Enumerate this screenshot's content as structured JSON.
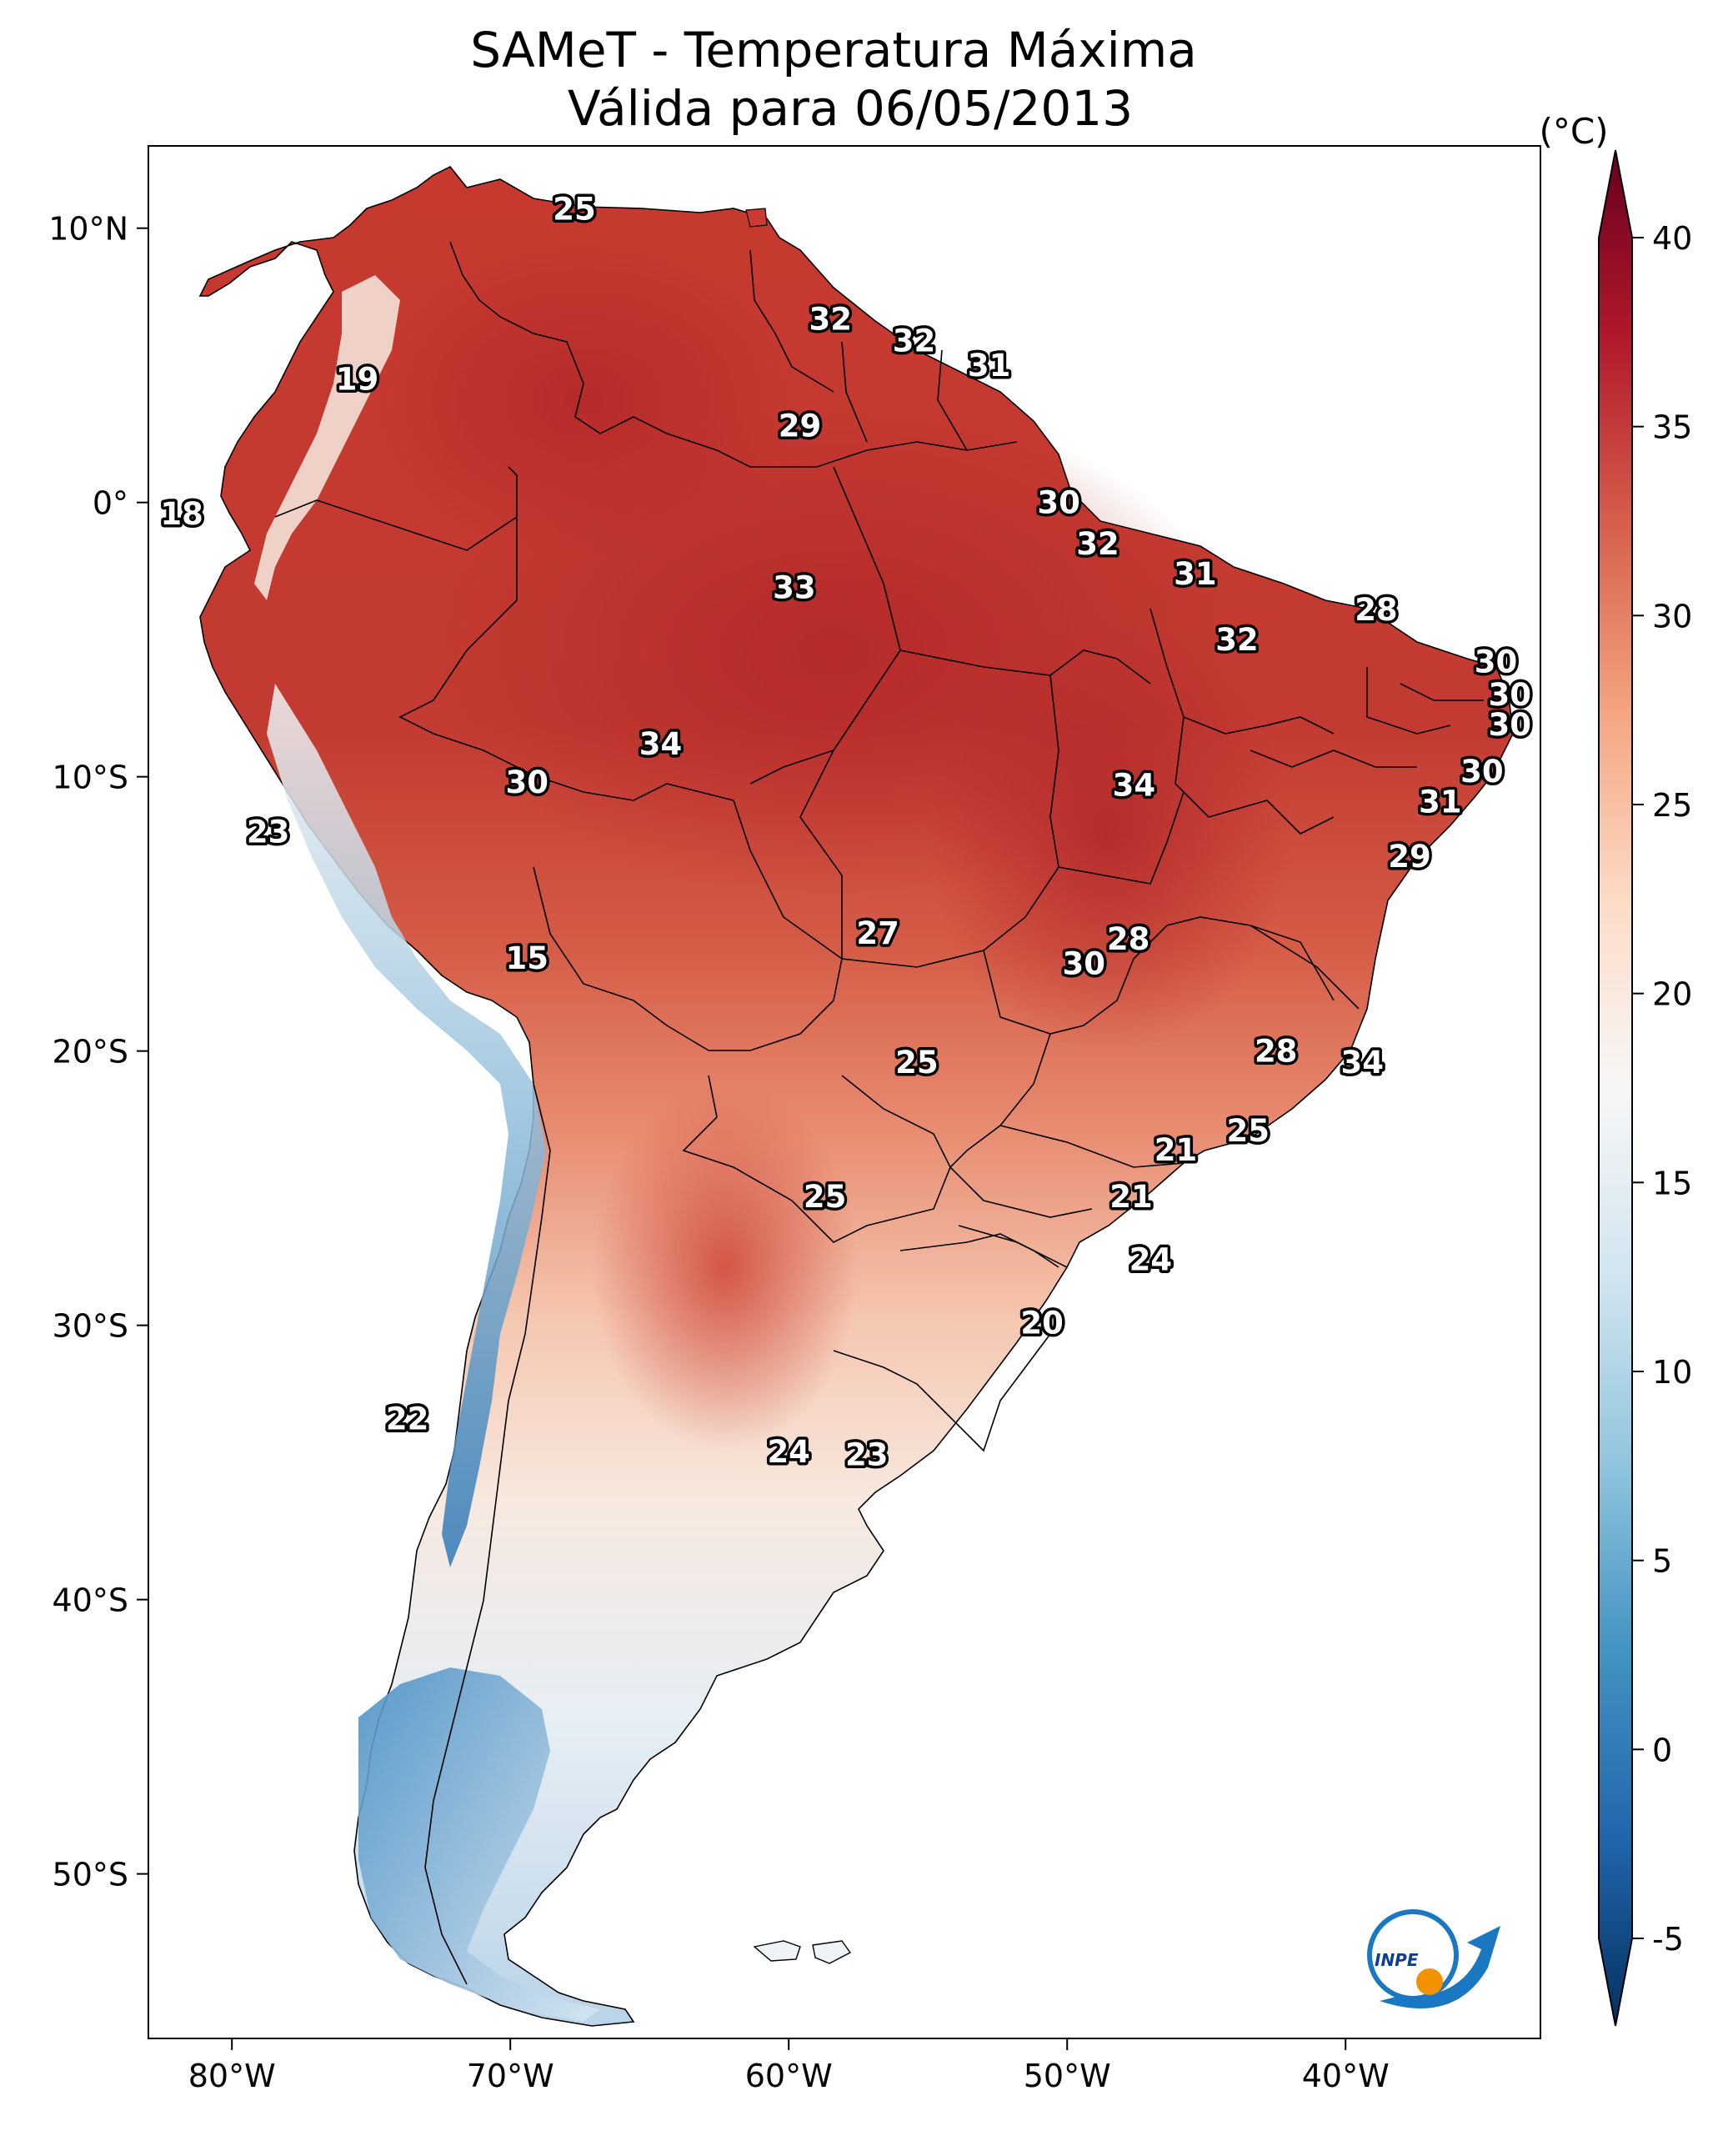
{
  "title": {
    "line1": "SAMeT - Temperatura Máxima",
    "line2": "Válida para 06/05/2013"
  },
  "map": {
    "lon_range": [
      -83,
      -33
    ],
    "lat_range": [
      -56,
      13
    ],
    "x_ticks": [
      {
        "lon": -80,
        "label": "80°W"
      },
      {
        "lon": -70,
        "label": "70°W"
      },
      {
        "lon": -60,
        "label": "60°W"
      },
      {
        "lon": -50,
        "label": "50°W"
      },
      {
        "lon": -40,
        "label": "40°W"
      }
    ],
    "y_ticks": [
      {
        "lat": 10,
        "label": "10°N"
      },
      {
        "lat": 0,
        "label": "0°"
      },
      {
        "lat": -10,
        "label": "10°S"
      },
      {
        "lat": -20,
        "label": "20°S"
      },
      {
        "lat": -30,
        "label": "30°S"
      },
      {
        "lat": -40,
        "label": "40°S"
      },
      {
        "lat": -50,
        "label": "50°S"
      }
    ],
    "temperature_labels": [
      {
        "lon": -67.7,
        "lat": 10.7,
        "text": "25"
      },
      {
        "lon": -58.5,
        "lat": 6.7,
        "text": "32"
      },
      {
        "lon": -55.5,
        "lat": 5.9,
        "text": "32"
      },
      {
        "lon": -52.8,
        "lat": 5.0,
        "text": "31"
      },
      {
        "lon": -75.5,
        "lat": 4.5,
        "text": "19"
      },
      {
        "lon": -59.6,
        "lat": 2.8,
        "text": "29"
      },
      {
        "lon": -50.3,
        "lat": 0.0,
        "text": "30"
      },
      {
        "lon": -81.8,
        "lat": -0.4,
        "text": "18"
      },
      {
        "lon": -48.9,
        "lat": -1.5,
        "text": "32"
      },
      {
        "lon": -45.4,
        "lat": -2.6,
        "text": "31"
      },
      {
        "lon": -59.8,
        "lat": -3.1,
        "text": "33"
      },
      {
        "lon": -38.9,
        "lat": -3.9,
        "text": "28"
      },
      {
        "lon": -43.9,
        "lat": -5.0,
        "text": "32"
      },
      {
        "lon": -34.6,
        "lat": -5.8,
        "text": "30"
      },
      {
        "lon": -34.1,
        "lat": -7.0,
        "text": "30"
      },
      {
        "lon": -34.1,
        "lat": -8.1,
        "text": "30"
      },
      {
        "lon": -64.6,
        "lat": -8.8,
        "text": "34"
      },
      {
        "lon": -35.1,
        "lat": -9.8,
        "text": "30"
      },
      {
        "lon": -69.4,
        "lat": -10.2,
        "text": "30"
      },
      {
        "lon": -47.6,
        "lat": -10.3,
        "text": "34"
      },
      {
        "lon": -36.6,
        "lat": -10.9,
        "text": "31"
      },
      {
        "lon": -78.7,
        "lat": -12.0,
        "text": "23"
      },
      {
        "lon": -37.7,
        "lat": -12.9,
        "text": "29"
      },
      {
        "lon": -56.8,
        "lat": -15.7,
        "text": "27"
      },
      {
        "lon": -47.8,
        "lat": -15.9,
        "text": "28"
      },
      {
        "lon": -69.4,
        "lat": -16.6,
        "text": "15"
      },
      {
        "lon": -49.4,
        "lat": -16.8,
        "text": "30"
      },
      {
        "lon": -42.5,
        "lat": -20.0,
        "text": "28"
      },
      {
        "lon": -55.4,
        "lat": -20.4,
        "text": "25"
      },
      {
        "lon": -39.4,
        "lat": -20.4,
        "text": "34"
      },
      {
        "lon": -43.5,
        "lat": -22.9,
        "text": "25"
      },
      {
        "lon": -46.1,
        "lat": -23.6,
        "text": "21"
      },
      {
        "lon": -58.7,
        "lat": -25.3,
        "text": "25"
      },
      {
        "lon": -47.7,
        "lat": -25.3,
        "text": "21"
      },
      {
        "lon": -47.0,
        "lat": -27.6,
        "text": "24"
      },
      {
        "lon": -50.9,
        "lat": -29.9,
        "text": "20"
      },
      {
        "lon": -73.7,
        "lat": -33.4,
        "text": "22"
      },
      {
        "lon": -60.0,
        "lat": -34.6,
        "text": "24"
      },
      {
        "lon": -57.2,
        "lat": -34.7,
        "text": "23"
      }
    ]
  },
  "colorbar": {
    "unit": "(°C)",
    "min": -5,
    "max": 40,
    "ticks": [
      "-5",
      "0",
      "5",
      "10",
      "15",
      "20",
      "25",
      "30",
      "35",
      "40"
    ],
    "colors": [
      "#053061",
      "#2166ac",
      "#4393c3",
      "#92c5de",
      "#d1e5f0",
      "#f7f7f7",
      "#fddbc7",
      "#f4a582",
      "#d6604d",
      "#b2182b",
      "#67001f"
    ]
  },
  "logo": {
    "text": "INPE",
    "colors": {
      "arrow": "#1a78c2",
      "ring": "#1a78c2",
      "dot": "#f39200"
    }
  },
  "colors": {
    "land_hot": "#c8362f",
    "land_warm": "#e0705a",
    "land_mild": "#f6c3ab",
    "land_cool": "#eef2f6",
    "land_cold": "#6fa8d0",
    "ocean": "#ffffff",
    "border": "#000000"
  }
}
